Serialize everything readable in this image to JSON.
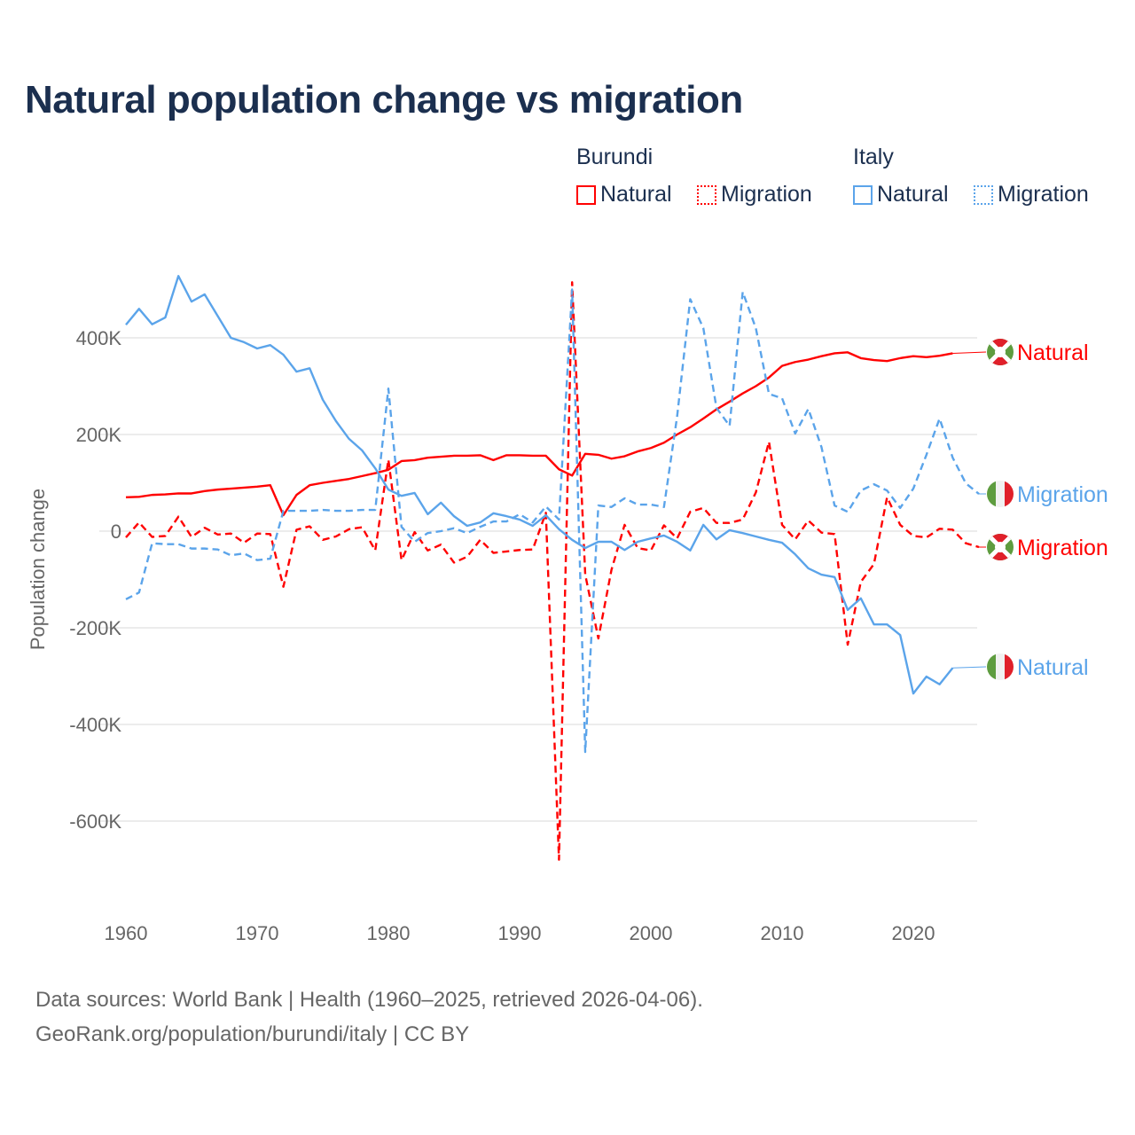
{
  "title": "Natural population change vs migration",
  "legend": {
    "groups": [
      {
        "name": "Burundi",
        "items": [
          "Natural",
          "Migration"
        ]
      },
      {
        "name": "Italy",
        "items": [
          "Natural",
          "Migration"
        ]
      }
    ]
  },
  "footer": {
    "line1": "Data sources: World Bank | Health (1960–2025, retrieved 2026-04-06).",
    "line2": "GeoRank.org/population/burundi/italy | CC BY"
  },
  "colors": {
    "burundi": "#ff0000",
    "italy": "#5ba4ea",
    "title": "#1b2f4f"
  },
  "chart_data": {
    "type": "line",
    "title": "Natural population change vs migration",
    "xlabel": "",
    "ylabel": "Population change",
    "xlim": [
      1960,
      2025
    ],
    "ylim": [
      -700000,
      530000
    ],
    "x_ticks": [
      "1960",
      "1970",
      "1980",
      "1990",
      "2000",
      "2010",
      "2020"
    ],
    "y_ticks": [
      {
        "value": 400000,
        "label": "400K"
      },
      {
        "value": 200000,
        "label": "200K"
      },
      {
        "value": 0,
        "label": "0"
      },
      {
        "value": -200000,
        "label": "-200K"
      },
      {
        "value": -400000,
        "label": "-400K"
      },
      {
        "value": -600000,
        "label": "-600K"
      }
    ],
    "grid": true,
    "series": [
      {
        "name": "Burundi Natural",
        "country": "burundi",
        "kind": "natural",
        "end_label": "Natural",
        "start": 1960,
        "values": [
          70,
          71,
          75,
          76,
          78,
          78,
          83,
          86,
          88,
          90,
          92,
          95,
          33,
          75,
          95,
          100,
          104,
          108,
          114,
          120,
          127,
          145,
          147,
          152,
          154,
          156,
          156,
          157,
          147,
          157,
          157,
          156,
          156,
          128,
          115,
          160,
          158,
          150,
          155,
          165,
          172,
          183,
          200,
          215,
          233,
          252,
          268,
          285,
          300,
          318,
          342,
          350,
          355,
          362,
          368,
          370,
          358,
          354,
          352,
          358,
          362,
          360,
          363,
          368
        ]
      },
      {
        "name": "Burundi Migration",
        "country": "burundi",
        "kind": "migration",
        "end_label": "Migration",
        "start": 1960,
        "values": [
          -13,
          18,
          -12,
          -10,
          30,
          -12,
          7,
          -7,
          -5,
          -24,
          -5,
          -6,
          -115,
          3,
          10,
          -18,
          -11,
          4,
          8,
          -40,
          148,
          -60,
          -2,
          -40,
          -28,
          -65,
          -53,
          -18,
          -45,
          -42,
          -39,
          -38,
          38,
          -680,
          515,
          -90,
          -222,
          -80,
          13,
          -35,
          -40,
          12,
          -15,
          40,
          48,
          17,
          17,
          24,
          80,
          185,
          13,
          -17,
          22,
          -3,
          -6,
          -235,
          -105,
          -68,
          70,
          13,
          -10,
          -13,
          5,
          3,
          -25,
          -33
        ]
      },
      {
        "name": "Italy Natural",
        "country": "italy",
        "kind": "natural",
        "end_label": "Natural",
        "start": 1960,
        "values": [
          427,
          460,
          428,
          442,
          528,
          475,
          490,
          445,
          400,
          391,
          378,
          385,
          365,
          330,
          337,
          272,
          228,
          191,
          167,
          130,
          86,
          73,
          79,
          35,
          59,
          31,
          11,
          18,
          37,
          31,
          24,
          11,
          33,
          4,
          -18,
          -35,
          -22,
          -22,
          -39,
          -22,
          -15,
          -9,
          -22,
          -40,
          13,
          -17,
          2,
          -4,
          -11,
          -18,
          -24,
          -48,
          -77,
          -90,
          -95,
          -163,
          -139,
          -193,
          -193,
          -215,
          -336,
          -301,
          -317,
          -283
        ]
      },
      {
        "name": "Italy Migration",
        "country": "italy",
        "kind": "migration",
        "end_label": "Migration",
        "start": 1960,
        "values": [
          -141,
          -127,
          -25,
          -27,
          -27,
          -36,
          -36,
          -38,
          -50,
          -46,
          -60,
          -57,
          42,
          42,
          42,
          44,
          42,
          42,
          44,
          44,
          295,
          9,
          -22,
          -4,
          0,
          6,
          -4,
          9,
          20,
          20,
          35,
          18,
          51,
          24,
          500,
          -457,
          53,
          50,
          68,
          55,
          55,
          50,
          237,
          480,
          420,
          255,
          218,
          495,
          420,
          284,
          275,
          202,
          253,
          174,
          53,
          40,
          84,
          97,
          84,
          48,
          88,
          158,
          233,
          152,
          99,
          77
        ]
      }
    ],
    "value_units": "thousands"
  }
}
